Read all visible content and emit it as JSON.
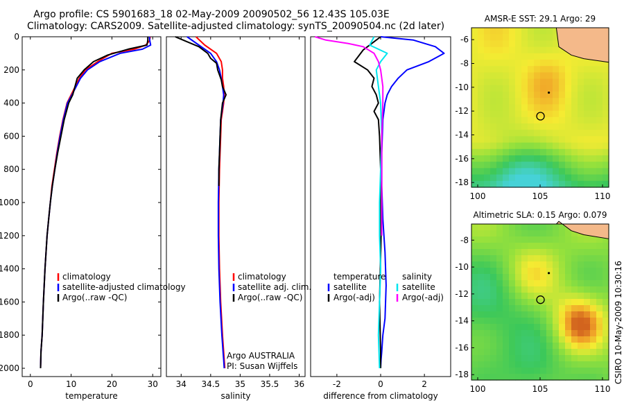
{
  "header": {
    "line1": "Argo profile: CS 5901683_18 02-May-2009 20090502_56 12.43S 105.03E",
    "line2": "Climatology: CARS2009. Satellite-adjusted climatology: synTS_20090504.nc (2d later)"
  },
  "side_label": "CSIRO 10-May-2009 10:30:16",
  "colors": {
    "red": "#ff0000",
    "blue": "#0000ff",
    "black": "#000000",
    "cyan": "#00e5ee",
    "magenta": "#ff00ff"
  },
  "chart_data": [
    {
      "id": "temperature",
      "type": "line",
      "xlabel": "temperature",
      "ylabel": "",
      "xlim": [
        -2,
        32
      ],
      "ylim": [
        2050,
        0
      ],
      "xticks": [
        0,
        10,
        20,
        30
      ],
      "yticks": [
        0,
        200,
        400,
        600,
        800,
        1000,
        1200,
        1400,
        1600,
        1800,
        2000
      ],
      "legend": [
        {
          "label": "climatology",
          "color": "#ff0000"
        },
        {
          "label": "satellite-adjusted climatology",
          "color": "#0000ff"
        },
        {
          "label": "Argo(..raw -QC)",
          "color": "#000000"
        }
      ],
      "series": [
        {
          "name": "climatology",
          "color": "#ff0000",
          "x": [
            29.4,
            29.2,
            28.3,
            25.5,
            20,
            16.5,
            13.5,
            12,
            10,
            9,
            8,
            7.2,
            6.5,
            5.9,
            5.3,
            4.9,
            4.5,
            4.1,
            3.6,
            3.2,
            2.9,
            2.6,
            2.5
          ],
          "y": [
            0,
            25,
            50,
            75,
            100,
            150,
            200,
            250,
            350,
            400,
            500,
            600,
            700,
            800,
            900,
            1000,
            1100,
            1200,
            1400,
            1600,
            1800,
            1900,
            2000
          ]
        },
        {
          "name": "satellite-adjusted climatology",
          "color": "#0000ff",
          "x": [
            29.2,
            29.3,
            29.5,
            27.5,
            22,
            17,
            14,
            12.3,
            10.2,
            9.1,
            8.1,
            7.3,
            6.6,
            6,
            5.4,
            4.9,
            4.5,
            4.1,
            3.6,
            3.2,
            2.9,
            2.6,
            2.5
          ],
          "y": [
            0,
            25,
            50,
            75,
            100,
            150,
            200,
            250,
            350,
            400,
            500,
            600,
            700,
            800,
            900,
            1000,
            1100,
            1200,
            1400,
            1600,
            1800,
            1900,
            2000
          ]
        },
        {
          "name": "Argo(..raw -QC)",
          "color": "#000000",
          "x": [
            28.8,
            28.8,
            28.6,
            24,
            19,
            15.5,
            13.2,
            11.5,
            10.4,
            9.4,
            8.3,
            7.5,
            6.7,
            6,
            5.4,
            4.9,
            4.5,
            4.1,
            3.6,
            3.2,
            2.9,
            2.6,
            2.5
          ],
          "y": [
            0,
            20,
            50,
            75,
            110,
            150,
            200,
            250,
            350,
            400,
            500,
            600,
            700,
            800,
            900,
            1000,
            1100,
            1200,
            1400,
            1600,
            1800,
            1900,
            2000
          ]
        }
      ]
    },
    {
      "id": "salinity",
      "type": "line",
      "xlabel": "salinity",
      "xlim": [
        33.75,
        36.1
      ],
      "ylim": [
        2050,
        0
      ],
      "xticks": [
        34,
        34.5,
        35,
        35.5,
        36
      ],
      "xticklabels": [
        "34",
        "34.5",
        "35",
        "35.5",
        "36"
      ],
      "legend": [
        {
          "label": "climatology",
          "color": "#ff0000"
        },
        {
          "label": "satellite adj. clim.",
          "color": "#0000ff"
        },
        {
          "label": "Argo(..raw -QC)",
          "color": "#000000"
        }
      ],
      "annotations": [
        "Argo AUSTRALIA",
        "PI: Susan Wijffels"
      ],
      "series": [
        {
          "name": "climatology",
          "color": "#ff0000",
          "x": [
            34.25,
            34.4,
            34.6,
            34.68,
            34.7,
            34.7,
            34.72,
            34.73,
            34.72,
            34.7,
            34.68,
            34.67,
            34.66,
            34.65,
            34.64,
            34.64,
            34.65,
            34.67,
            34.7,
            34.72,
            34.73,
            34.74
          ],
          "y": [
            0,
            50,
            100,
            150,
            200,
            250,
            300,
            350,
            400,
            450,
            500,
            600,
            700,
            800,
            1000,
            1200,
            1400,
            1600,
            1800,
            1900,
            1950,
            2000
          ]
        },
        {
          "name": "satellite adj. clim.",
          "color": "#0000ff",
          "x": [
            34.1,
            34.3,
            34.5,
            34.6,
            34.65,
            34.68,
            34.7,
            34.72,
            34.71,
            34.69,
            34.67,
            34.66,
            34.65,
            34.64,
            34.63,
            34.63,
            34.64,
            34.66,
            34.69,
            34.71,
            34.72,
            34.73
          ],
          "y": [
            0,
            50,
            100,
            150,
            200,
            250,
            300,
            350,
            400,
            450,
            500,
            600,
            700,
            800,
            1000,
            1200,
            1400,
            1600,
            1800,
            1900,
            1950,
            2000
          ]
        },
        {
          "name": "Argo(..raw -QC)",
          "color": "#000000",
          "x": [
            33.9,
            34.1,
            34.3,
            34.45,
            34.5,
            34.6,
            34.62,
            34.68,
            34.7,
            34.76,
            34.7,
            34.67,
            34.66,
            34.65,
            34.64,
            34.64
          ],
          "y": [
            0,
            30,
            60,
            100,
            130,
            160,
            200,
            260,
            300,
            350,
            400,
            500,
            600,
            700,
            800,
            900
          ]
        }
      ]
    },
    {
      "id": "difference",
      "type": "line",
      "xlabel": "difference from climatology",
      "xlim": [
        -3.2,
        3.2
      ],
      "ylim": [
        2050,
        0
      ],
      "xticks": [
        -2,
        0,
        2
      ],
      "legend": [
        {
          "label": "temperature",
          "color": ""
        },
        {
          "label": "satellite",
          "color": "#0000ff"
        },
        {
          "label": "Argo(-adj)",
          "color": "#000000"
        },
        {
          "label": "salinity",
          "color": ""
        },
        {
          "label": "satellite",
          "color": "#00e5ee"
        },
        {
          "label": "Argo(-adj)",
          "color": "#ff00ff"
        }
      ],
      "series": [
        {
          "name": "temperature satellite",
          "color": "#0000ff",
          "x": [
            0,
            1.5,
            2.5,
            2.9,
            2.2,
            1.2,
            0.8,
            0.5,
            0.3,
            0.2,
            0.1,
            0.05,
            0.05,
            0.1,
            0.2,
            0.25,
            0.2,
            0.1,
            0.05,
            0.02,
            0
          ],
          "y": [
            0,
            20,
            60,
            100,
            150,
            200,
            250,
            300,
            350,
            400,
            500,
            700,
            900,
            1100,
            1300,
            1500,
            1700,
            1800,
            1900,
            1950,
            2000
          ]
        },
        {
          "name": "temperature Argo(-adj)",
          "color": "#000000",
          "x": [
            0,
            -0.3,
            -0.8,
            -1.2,
            -0.6,
            -0.3,
            -0.4,
            -0.2,
            -0.1,
            -0.3,
            -0.1,
            -0.05,
            0,
            0.02,
            -0.05,
            0,
            0
          ],
          "y": [
            0,
            30,
            80,
            150,
            200,
            250,
            300,
            350,
            400,
            450,
            500,
            600,
            800,
            1200,
            1600,
            1900,
            2000
          ]
        },
        {
          "name": "salinity satellite",
          "color": "#00e5ee",
          "x": [
            -0.3,
            -0.5,
            0.3,
            0,
            -0.2,
            -0.1,
            0,
            0.05,
            0,
            -0.05,
            -0.05,
            0,
            -0.05,
            -0.1,
            -0.05
          ],
          "y": [
            0,
            50,
            100,
            150,
            200,
            300,
            400,
            600,
            800,
            1000,
            1200,
            1400,
            1600,
            1800,
            2000
          ]
        },
        {
          "name": "salinity Argo(-adj)",
          "color": "#ff00ff",
          "x": [
            -3.0,
            -2.5,
            -1.5,
            -0.8,
            -0.3,
            -0.1,
            0,
            0.1,
            0.1,
            0.05,
            0.05,
            0.05,
            0.05
          ],
          "y": [
            0,
            20,
            40,
            60,
            100,
            150,
            200,
            300,
            400,
            600,
            800,
            1000,
            1200
          ]
        }
      ]
    },
    {
      "id": "sst_map",
      "type": "heatmap",
      "title": "AMSR-E SST: 29.1 Argo: 29",
      "xlim": [
        99.5,
        110.5
      ],
      "ylim": [
        -18.4,
        -5.0
      ],
      "xticks": [
        100,
        105,
        110
      ],
      "yticks": [
        -6,
        -8,
        -10,
        -12,
        -14,
        -16,
        -18
      ],
      "argo_position": {
        "lon": 105.03,
        "lat": -12.43
      }
    },
    {
      "id": "sla_map",
      "type": "heatmap",
      "title": "Altimetric SLA: 0.15 Argo: 0.079",
      "xlim": [
        99.5,
        110.5
      ],
      "ylim": [
        -18.4,
        -6.8
      ],
      "xticks": [
        100,
        105,
        110
      ],
      "yticks": [
        -8,
        -10,
        -12,
        -14,
        -16,
        -18
      ],
      "argo_position": {
        "lon": 105.03,
        "lat": -12.43
      }
    }
  ]
}
